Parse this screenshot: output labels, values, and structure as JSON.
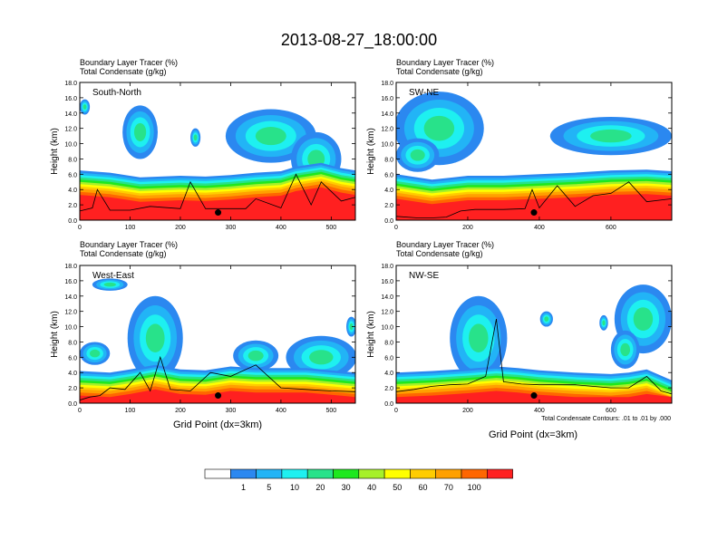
{
  "title": "2013-08-27_18:00:00",
  "header_line1": "Boundary Layer Tracer   (%)",
  "header_line2": "Total Condensate   (g/kg)",
  "ylabel": "Height (km)",
  "xlabel": "Grid Point (dx=3km)",
  "contour_note": "Total Condensate Contours: .01 to .01 by .000",
  "colorbar": {
    "colors": [
      "#ffffff",
      "#2b88f0",
      "#22b4f6",
      "#1ef0f0",
      "#28e28a",
      "#1ee81e",
      "#a6f02a",
      "#ffff00",
      "#ffcc00",
      "#ffa000",
      "#ff6600",
      "#ff2020"
    ],
    "labels": [
      "1",
      "5",
      "10",
      "20",
      "30",
      "40",
      "50",
      "60",
      "70",
      "100"
    ]
  },
  "colors": {
    "blue": "#2b88f0",
    "sky": "#22b4f6",
    "cyan": "#1ef0f0",
    "green": "#28e28a",
    "bgreen": "#1ee81e",
    "lime": "#a6f02a",
    "yellow": "#ffff00",
    "gold": "#ffcc00",
    "orange": "#ffa000",
    "dorange": "#ff6600",
    "red": "#ff2020"
  },
  "chart_data": [
    {
      "type": "heatmap",
      "name": "South-North",
      "x_range": [
        0,
        548
      ],
      "y_range": [
        0,
        18
      ],
      "xticks": [
        0,
        100,
        200,
        300,
        400,
        500
      ],
      "yticks": [
        0,
        2,
        4,
        6,
        8,
        10,
        12,
        14,
        16,
        18
      ],
      "marker": {
        "x": 275,
        "y": 1.0
      },
      "top_profile_x": [
        0,
        60,
        120,
        200,
        250,
        300,
        350,
        400,
        430,
        480,
        520,
        548
      ],
      "top_profile_y": [
        6.5,
        6.2,
        5.6,
        5.8,
        5.7,
        5.9,
        6.2,
        6.4,
        7.0,
        7.5,
        6.8,
        6.5
      ],
      "ground_x": [
        0,
        25,
        35,
        60,
        100,
        140,
        200,
        220,
        250,
        300,
        330,
        350,
        400,
        430,
        460,
        480,
        520,
        548
      ],
      "ground_y": [
        1.2,
        1.6,
        4.0,
        1.3,
        1.3,
        1.8,
        1.5,
        5.0,
        1.5,
        1.5,
        1.5,
        2.8,
        1.6,
        6.0,
        2.0,
        5.0,
        2.5,
        3.0
      ]
    },
    {
      "type": "heatmap",
      "name": "SW-NE",
      "x_range": [
        0,
        770
      ],
      "y_range": [
        0,
        18
      ],
      "xticks": [
        0,
        200,
        400,
        600
      ],
      "yticks": [
        0,
        2,
        4,
        6,
        8,
        10,
        12,
        14,
        16,
        18
      ],
      "marker": {
        "x": 385,
        "y": 1.0
      },
      "top_profile_x": [
        0,
        100,
        160,
        200,
        300,
        400,
        500,
        600,
        700,
        770
      ],
      "top_profile_y": [
        6.0,
        5.3,
        5.6,
        5.8,
        5.8,
        6.0,
        6.2,
        6.5,
        6.6,
        6.4
      ],
      "ground_x": [
        0,
        60,
        100,
        140,
        180,
        220,
        300,
        360,
        380,
        400,
        450,
        500,
        550,
        600,
        650,
        700,
        770
      ],
      "ground_y": [
        0.5,
        0.3,
        0.3,
        0.4,
        1.2,
        1.4,
        1.4,
        1.5,
        4.0,
        1.6,
        4.5,
        1.8,
        3.2,
        3.5,
        5.0,
        2.4,
        2.8
      ]
    },
    {
      "type": "heatmap",
      "name": "West-East",
      "x_range": [
        0,
        548
      ],
      "y_range": [
        0,
        18
      ],
      "xticks": [
        0,
        100,
        200,
        300,
        400,
        500
      ],
      "yticks": [
        0,
        2,
        4,
        6,
        8,
        10,
        12,
        14,
        16,
        18
      ],
      "marker": {
        "x": 275,
        "y": 1.0
      },
      "top_profile_x": [
        0,
        60,
        100,
        150,
        200,
        250,
        300,
        350,
        400,
        450,
        500,
        548
      ],
      "top_profile_y": [
        4.2,
        4.0,
        4.4,
        5.0,
        4.4,
        4.3,
        4.8,
        4.6,
        4.6,
        4.6,
        4.3,
        4.0
      ],
      "ground_x": [
        0,
        20,
        40,
        60,
        90,
        120,
        140,
        160,
        180,
        220,
        260,
        300,
        350,
        400,
        450,
        500,
        548
      ],
      "ground_y": [
        0.4,
        0.8,
        1.0,
        2.0,
        1.8,
        4.0,
        1.6,
        6.0,
        1.8,
        1.6,
        4.0,
        3.5,
        5.0,
        2.0,
        1.8,
        1.6,
        1.5
      ]
    },
    {
      "type": "heatmap",
      "name": "NW-SE",
      "x_range": [
        0,
        770
      ],
      "y_range": [
        0,
        18
      ],
      "xticks": [
        0,
        200,
        400,
        600
      ],
      "yticks": [
        0,
        2,
        4,
        6,
        8,
        10,
        12,
        14,
        16,
        18
      ],
      "marker": {
        "x": 385,
        "y": 1.0
      },
      "top_profile_x": [
        0,
        100,
        200,
        280,
        340,
        400,
        500,
        600,
        650,
        700,
        770
      ],
      "top_profile_y": [
        4.0,
        4.2,
        4.5,
        4.8,
        4.6,
        4.3,
        4.0,
        3.8,
        4.0,
        4.4,
        3.0
      ],
      "ground_x": [
        0,
        50,
        100,
        150,
        200,
        250,
        280,
        300,
        350,
        400,
        500,
        600,
        650,
        700,
        740,
        770
      ],
      "ground_y": [
        1.5,
        1.8,
        2.2,
        2.4,
        2.5,
        3.5,
        11.0,
        2.8,
        2.5,
        2.4,
        2.4,
        2.0,
        2.0,
        3.5,
        1.6,
        1.2
      ]
    }
  ]
}
